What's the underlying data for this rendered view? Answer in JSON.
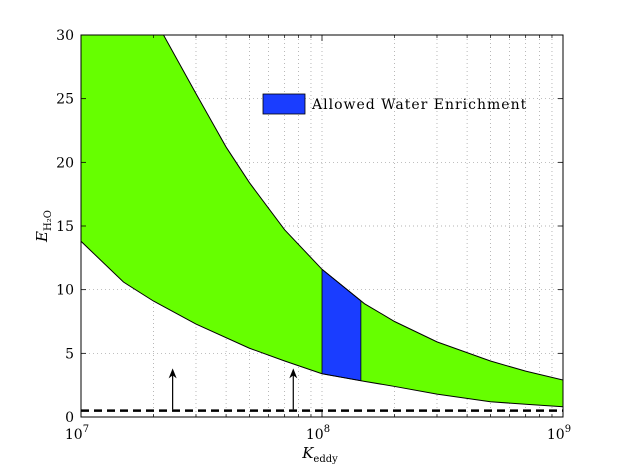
{
  "chart_data": {
    "type": "area",
    "xscale": "log",
    "xlim": [
      10000000,
      1000000000
    ],
    "ylim": [
      0,
      30
    ],
    "grid": true,
    "xlabel": {
      "base": "K",
      "sub": "eddy"
    },
    "ylabel": {
      "base": "E",
      "sub": "H₂O"
    },
    "xticks": [
      {
        "value": 10000000,
        "base": "10",
        "exp": "7"
      },
      {
        "value": 100000000,
        "base": "10",
        "exp": "8"
      },
      {
        "value": 1000000000,
        "base": "10",
        "exp": "9"
      }
    ],
    "yticks": [
      0,
      5,
      10,
      15,
      20,
      25,
      30
    ],
    "legend": {
      "label": "Allowed Water Enrichment",
      "position": "top-right"
    },
    "band_upper": {
      "x": [
        10000000,
        15000000,
        20000000,
        22000000,
        30000000,
        40000000,
        50000000,
        70000000,
        100000000,
        150000000,
        200000000,
        300000000,
        500000000,
        700000000,
        1000000000
      ],
      "y": [
        30,
        30,
        30,
        30,
        25.4,
        21.2,
        18.4,
        14.7,
        11.6,
        8.9,
        7.5,
        5.9,
        4.4,
        3.6,
        2.9
      ]
    },
    "band_lower": {
      "x": [
        10000000,
        15000000,
        20000000,
        30000000,
        50000000,
        70000000,
        100000000,
        150000000,
        200000000,
        300000000,
        500000000,
        700000000,
        1000000000
      ],
      "y": [
        13.8,
        10.6,
        9.1,
        7.3,
        5.4,
        4.4,
        3.4,
        2.8,
        2.4,
        1.8,
        1.2,
        1.0,
        0.8
      ]
    },
    "allowed_band": {
      "x_start": 100000000,
      "x_end": 145000000
    },
    "dashed_line": {
      "y": 0.5
    },
    "arrows": [
      {
        "x": 24000000,
        "y_start": 0.6,
        "y_end": 3.5
      },
      {
        "x": 76000000,
        "y_start": 0.6,
        "y_end": 3.5
      }
    ],
    "colors": {
      "band": "#66ff00",
      "allowed": "#1a3dff",
      "line": "#000000",
      "grid": "#9a9a9a"
    }
  }
}
